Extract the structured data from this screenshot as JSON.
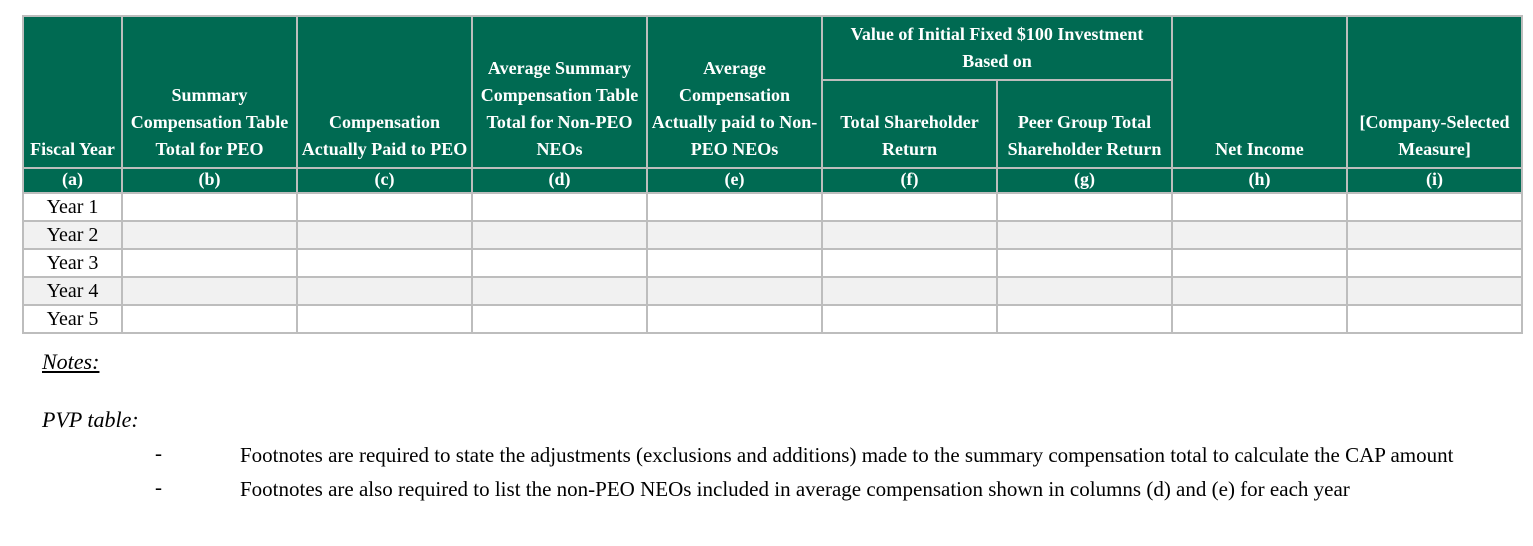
{
  "table": {
    "group_header": "Value of Initial Fixed $100 Investment Based on",
    "columns": [
      {
        "label": "Fiscal Year",
        "letter": "(a)"
      },
      {
        "label": "Summary Compensation Table Total for PEO",
        "letter": "(b)"
      },
      {
        "label": "Compensation Actually Paid to PEO",
        "letter": "(c)"
      },
      {
        "label": "Average Summary Compensation Table Total for Non-PEO NEOs",
        "letter": "(d)"
      },
      {
        "label": "Average Compensation Actually paid to Non-PEO NEOs",
        "letter": "(e)"
      },
      {
        "label": "Total Shareholder Return",
        "letter": "(f)"
      },
      {
        "label": "Peer Group Total Shareholder Return",
        "letter": "(g)"
      },
      {
        "label": "Net Income",
        "letter": "(h)"
      },
      {
        "label": "[Company-Selected Measure]",
        "letter": "(i)"
      }
    ],
    "rows": [
      {
        "fiscal_year": "Year 1",
        "values": [
          "",
          "",
          "",
          "",
          "",
          "",
          "",
          ""
        ]
      },
      {
        "fiscal_year": "Year 2",
        "values": [
          "",
          "",
          "",
          "",
          "",
          "",
          "",
          ""
        ]
      },
      {
        "fiscal_year": "Year 3",
        "values": [
          "",
          "",
          "",
          "",
          "",
          "",
          "",
          ""
        ]
      },
      {
        "fiscal_year": "Year 4",
        "values": [
          "",
          "",
          "",
          "",
          "",
          "",
          "",
          ""
        ]
      },
      {
        "fiscal_year": "Year 5",
        "values": [
          "",
          "",
          "",
          "",
          "",
          "",
          "",
          ""
        ]
      }
    ]
  },
  "notes": {
    "title": "Notes:",
    "subtitle": "PVP table:",
    "bullet_marker": "-",
    "bullets": [
      "Footnotes are required to state the adjustments (exclusions and additions) made to the summary compensation total to calculate the CAP amount",
      "Footnotes are also required to list the non-PEO NEOs included in average compensation shown in columns (d) and (e) for each year"
    ]
  },
  "colors": {
    "header_green": "#006a52",
    "header_text": "#ffffff",
    "alt_row": "#f1f1f1",
    "grid_line": "#bdbdbd"
  }
}
